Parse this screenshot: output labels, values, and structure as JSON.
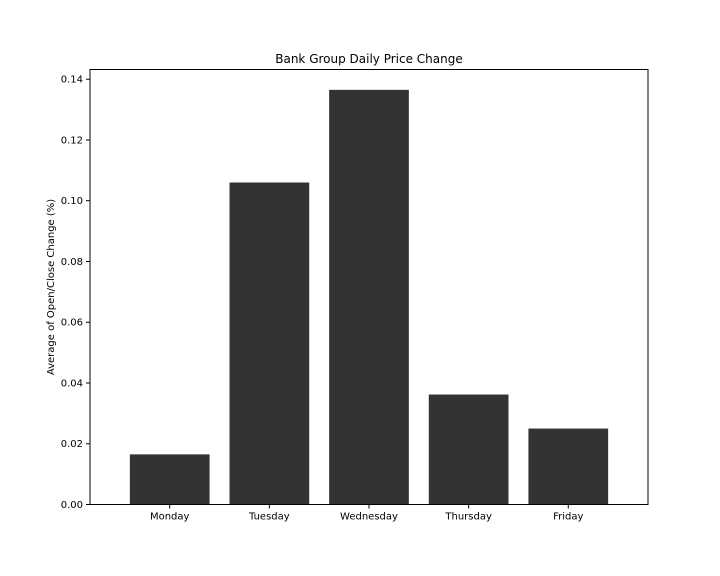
{
  "chart_data": {
    "type": "bar",
    "title": "Bank Group Daily Price Change",
    "xlabel": "",
    "ylabel": "Average of Open/Close Change (%)",
    "categories": [
      "Monday",
      "Tuesday",
      "Wednesday",
      "Thursday",
      "Friday"
    ],
    "values": [
      0.0165,
      0.106,
      0.1365,
      0.0362,
      0.025
    ],
    "ylim": [
      0,
      0.1432
    ],
    "yticks": [
      "0.00",
      "0.02",
      "0.04",
      "0.06",
      "0.08",
      "0.10",
      "0.12",
      "0.14"
    ],
    "ytick_values": [
      0,
      0.02,
      0.04,
      0.06,
      0.08,
      0.1,
      0.12,
      0.14
    ],
    "grid": false,
    "bar_color": "#333333"
  }
}
